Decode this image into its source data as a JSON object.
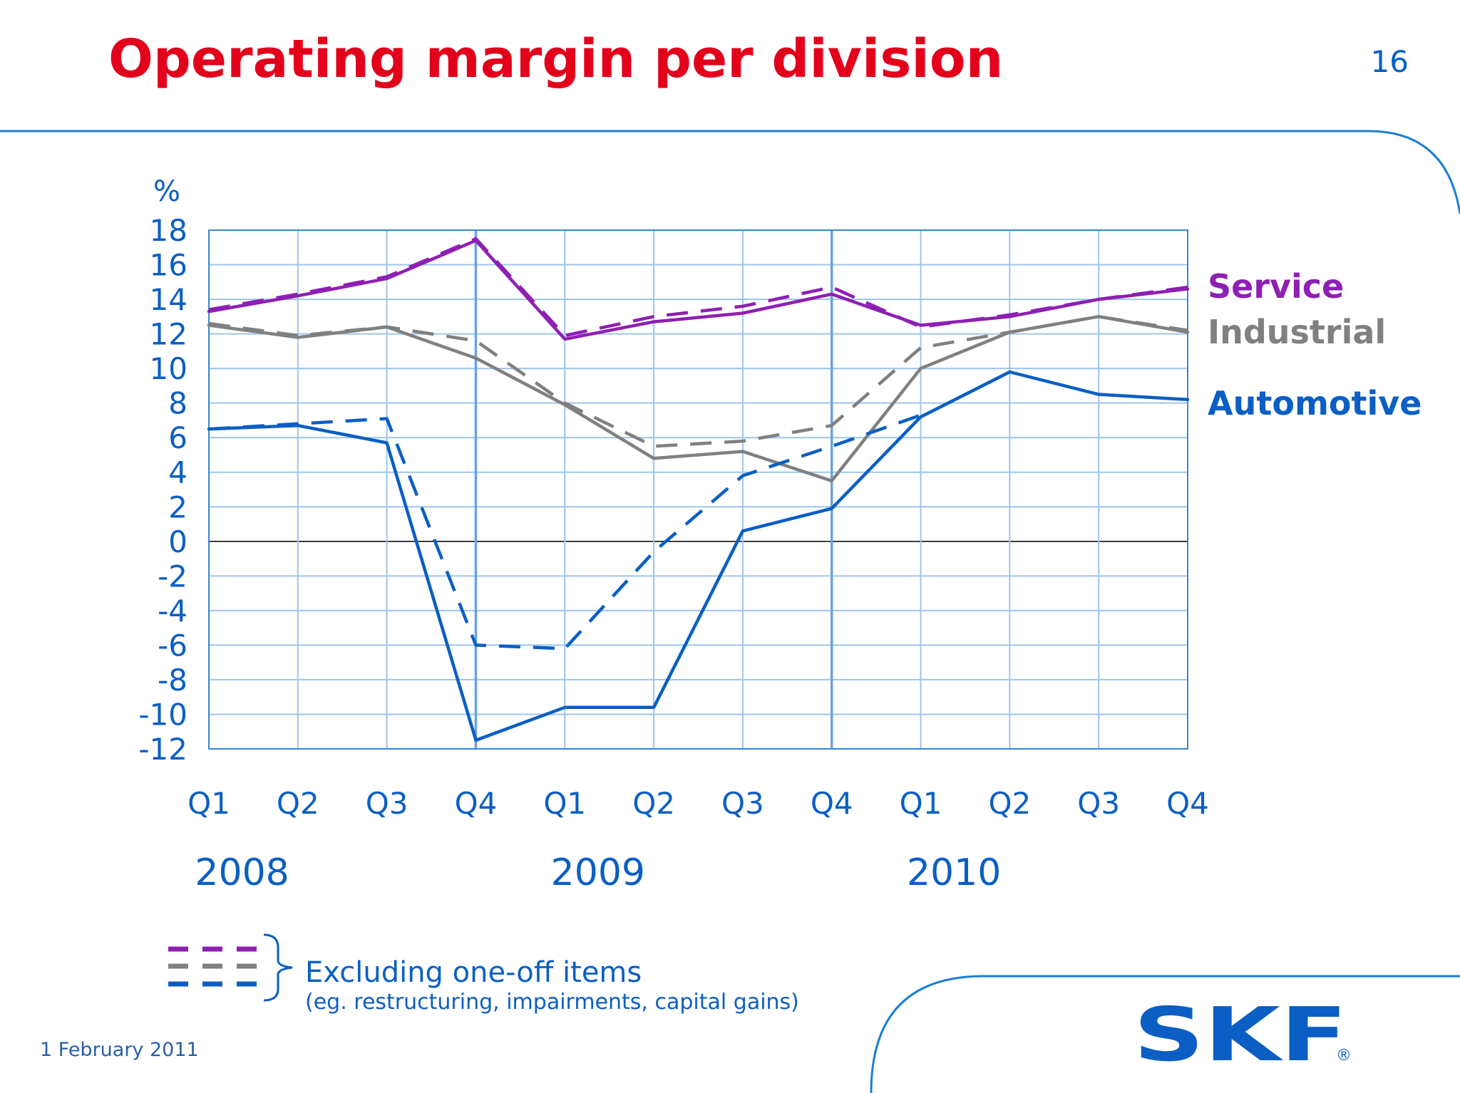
{
  "header": {
    "title": "Operating margin per division",
    "page_number": "16"
  },
  "footer": {
    "date": "1 February 2011"
  },
  "colors": {
    "service": "#8e1fb3",
    "industrial": "#808080",
    "automotive": "#0b5fc4",
    "title": "#e3001b",
    "grid": "#9cc6ee",
    "axis_text": "#0b5fc4"
  },
  "legend": {
    "note": "Excluding one-off items",
    "note_sub": "(eg. restructuring, impairments, capital gains)"
  },
  "logo": {
    "text": "SKF",
    "mark": "®"
  },
  "chart_data": {
    "type": "line",
    "ylabel": "%",
    "ylim": [
      -12,
      18
    ],
    "yticks": [
      18,
      16,
      14,
      12,
      10,
      8,
      6,
      4,
      2,
      0,
      -2,
      -4,
      -6,
      -8,
      -10,
      -12
    ],
    "categories": [
      "Q1",
      "Q2",
      "Q3",
      "Q4",
      "Q1",
      "Q2",
      "Q3",
      "Q4",
      "Q1",
      "Q2",
      "Q3",
      "Q4"
    ],
    "years": [
      "2008",
      "2009",
      "2010"
    ],
    "grid": true,
    "series": [
      {
        "name": "Service",
        "color_key": "service",
        "dashed": false,
        "values": [
          13.3,
          14.2,
          15.2,
          17.4,
          11.7,
          12.7,
          13.2,
          14.3,
          12.5,
          13.0,
          14.0,
          14.6
        ]
      },
      {
        "name": "",
        "color_key": "service",
        "dashed": true,
        "values": [
          13.4,
          14.3,
          15.3,
          17.5,
          11.9,
          13.0,
          13.6,
          14.7,
          12.4,
          13.1,
          14.0,
          14.7
        ]
      },
      {
        "name": "Industrial",
        "color_key": "industrial",
        "dashed": false,
        "values": [
          12.5,
          11.8,
          12.4,
          10.6,
          7.9,
          4.8,
          5.2,
          3.5,
          10.0,
          12.1,
          13.0,
          12.1
        ]
      },
      {
        "name": "",
        "color_key": "industrial",
        "dashed": true,
        "values": [
          12.6,
          11.9,
          12.4,
          11.6,
          8.0,
          5.5,
          5.8,
          6.7,
          11.2,
          12.1,
          13.0,
          12.2
        ]
      },
      {
        "name": "Automotive",
        "color_key": "automotive",
        "dashed": false,
        "values": [
          6.5,
          6.7,
          5.7,
          -11.5,
          -9.6,
          -9.6,
          0.6,
          1.9,
          7.2,
          9.8,
          8.5,
          8.2
        ]
      },
      {
        "name": "",
        "color_key": "automotive",
        "dashed": true,
        "values": [
          6.5,
          6.8,
          7.1,
          -6.0,
          -6.2,
          -0.6,
          3.8,
          5.5,
          7.3,
          null,
          null,
          null
        ]
      }
    ]
  }
}
